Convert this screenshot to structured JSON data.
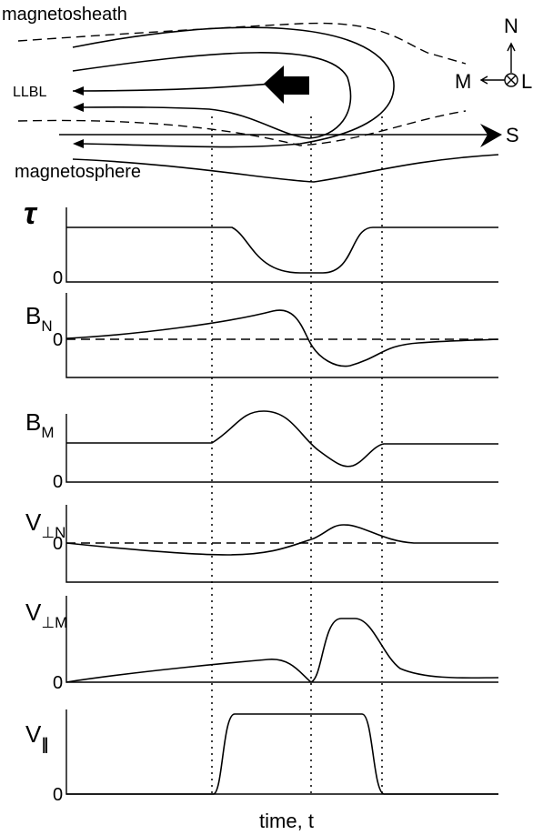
{
  "top": {
    "magnetosheath": "magnetosheath",
    "llbl": "LLBL",
    "magnetosphere": "magnetosphere",
    "north": "N",
    "m": "M",
    "l": "L",
    "s": "S"
  },
  "panels": [
    {
      "main": "τ",
      "zero": "0"
    },
    {
      "main": "B",
      "sub": "N",
      "zero": "0"
    },
    {
      "main": "B",
      "sub": "M",
      "zero": "0"
    },
    {
      "main": "V",
      "sub": "⊥N",
      "zero": "0"
    },
    {
      "main": "V",
      "sub": "⊥M",
      "zero": "0"
    },
    {
      "main": "V",
      "sub": "∥",
      "zero": "0"
    }
  ],
  "xlabel": "time, t"
}
